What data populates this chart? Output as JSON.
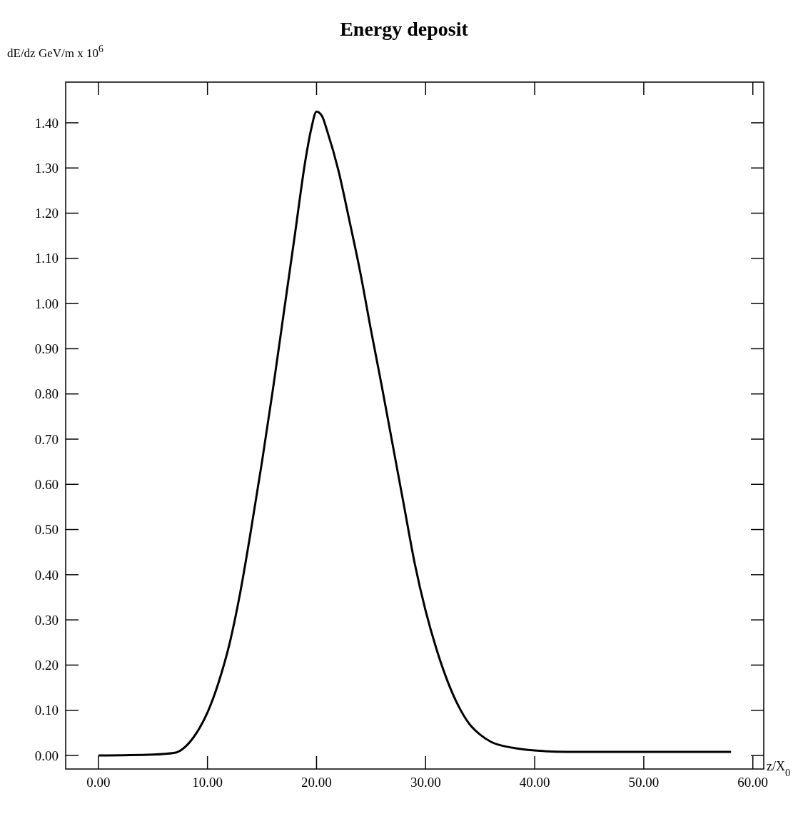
{
  "chart_data": {
    "type": "line",
    "title": "Energy deposit",
    "ylabel": "dE/dz GeV/m x 10$^{6}$",
    "xlabel": "z/X$_{0}$",
    "xlim": [
      -3,
      61
    ],
    "ylim": [
      -0.03,
      1.49
    ],
    "xticks": [
      {
        "value": 0,
        "label": "0.00"
      },
      {
        "value": 10,
        "label": "10.00"
      },
      {
        "value": 20,
        "label": "20.00"
      },
      {
        "value": 30,
        "label": "30.00"
      },
      {
        "value": 40,
        "label": "40.00"
      },
      {
        "value": 50,
        "label": "50.00"
      },
      {
        "value": 60,
        "label": "60.00"
      }
    ],
    "yticks": [
      {
        "value": 0,
        "label": "0.00"
      },
      {
        "value": 0.1,
        "label": "0.10"
      },
      {
        "value": 0.2,
        "label": "0.20"
      },
      {
        "value": 0.3,
        "label": "0.30"
      },
      {
        "value": 0.4,
        "label": "0.40"
      },
      {
        "value": 0.5,
        "label": "0.50"
      },
      {
        "value": 0.6,
        "label": "0.60"
      },
      {
        "value": 0.7,
        "label": "0.70"
      },
      {
        "value": 0.8,
        "label": "0.80"
      },
      {
        "value": 0.9,
        "label": "0.90"
      },
      {
        "value": 1,
        "label": "1.00"
      },
      {
        "value": 1.1,
        "label": "1.10"
      },
      {
        "value": 1.2,
        "label": "1.20"
      },
      {
        "value": 1.3,
        "label": "1.30"
      },
      {
        "value": 1.4,
        "label": "1.40"
      }
    ],
    "grid": false,
    "marker": "none",
    "line_style": "solid",
    "series": [
      {
        "color": "#000000",
        "x": [
          0,
          5,
          7,
          8,
          9,
          10,
          11,
          12,
          13,
          14,
          15,
          16,
          17,
          18,
          19,
          19.5,
          20,
          20.5,
          21,
          22,
          23,
          24,
          25,
          26,
          27,
          28,
          29,
          30,
          31,
          32,
          33,
          34,
          35,
          36,
          38,
          40,
          43,
          50,
          58
        ],
        "values": [
          0,
          0.002,
          0.006,
          0.02,
          0.05,
          0.095,
          0.16,
          0.245,
          0.36,
          0.5,
          0.65,
          0.81,
          0.98,
          1.15,
          1.32,
          1.385,
          1.425,
          1.415,
          1.38,
          1.295,
          1.185,
          1.07,
          0.94,
          0.815,
          0.685,
          0.555,
          0.425,
          0.32,
          0.235,
          0.165,
          0.11,
          0.07,
          0.046,
          0.03,
          0.017,
          0.011,
          0.008,
          0.008,
          0.008
        ]
      }
    ]
  }
}
